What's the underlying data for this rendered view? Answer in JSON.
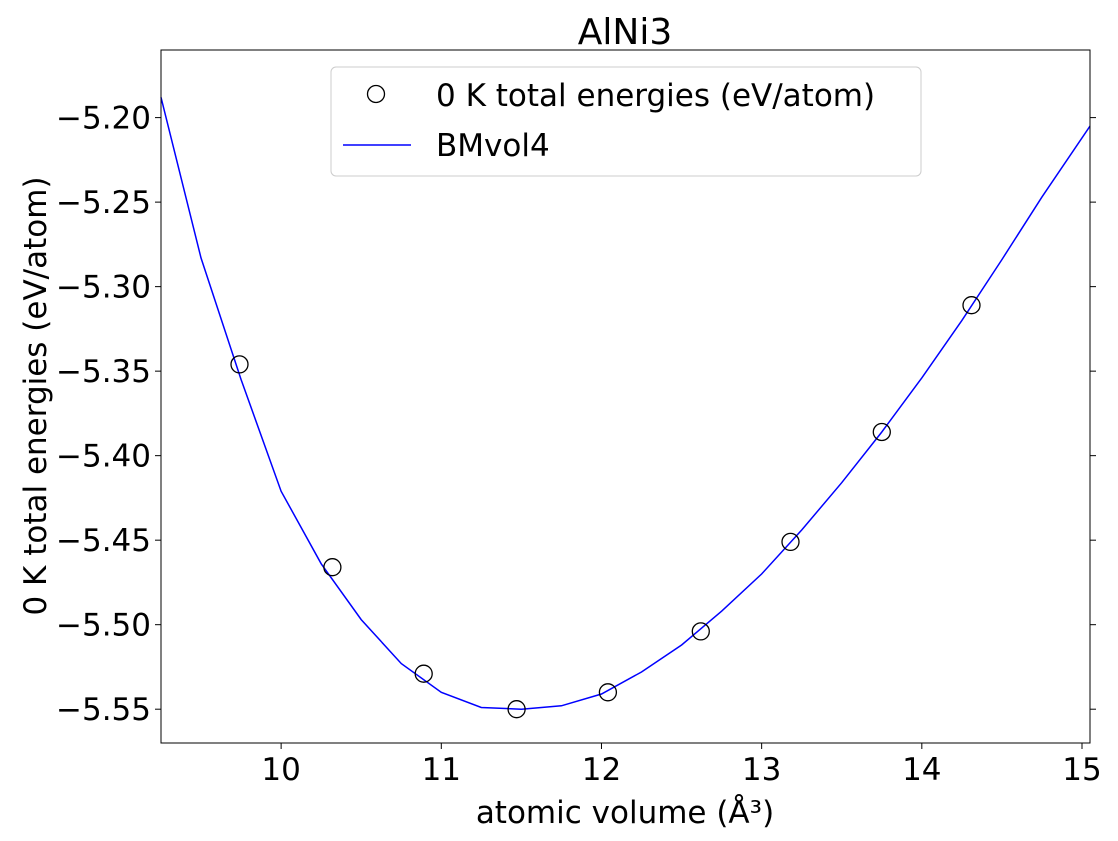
{
  "chart_data": {
    "type": "scatter",
    "title": "AlNi3",
    "xlabel": "atomic volume (Å³)",
    "ylabel": "0 K total energies (eV/atom)",
    "xlim": [
      9.25,
      15.05
    ],
    "ylim": [
      -5.57,
      -5.16
    ],
    "x_ticks": [
      10,
      11,
      12,
      13,
      14,
      15
    ],
    "x_tick_labels": [
      "10",
      "11",
      "12",
      "13",
      "14",
      "15"
    ],
    "y_ticks": [
      -5.2,
      -5.25,
      -5.3,
      -5.35,
      -5.4,
      -5.45,
      -5.5,
      -5.55
    ],
    "y_tick_labels": [
      "−5.20",
      "−5.25",
      "−5.30",
      "−5.35",
      "−5.40",
      "−5.45",
      "−5.50",
      "−5.55"
    ],
    "grid": false,
    "legend_position": "top-center",
    "series": [
      {
        "name": "0 K total energies (eV/atom)",
        "kind": "scatter",
        "marker": "open-circle",
        "color": "#000000",
        "x": [
          9.74,
          10.32,
          10.89,
          11.47,
          12.04,
          12.62,
          13.18,
          13.75,
          14.31
        ],
        "y": [
          -5.346,
          -5.466,
          -5.529,
          -5.55,
          -5.54,
          -5.504,
          -5.451,
          -5.386,
          -5.311
        ]
      },
      {
        "name": "BMvol4",
        "kind": "line",
        "color": "#0000ff",
        "x": [
          9.25,
          9.5,
          9.75,
          10.0,
          10.25,
          10.5,
          10.75,
          11.0,
          11.25,
          11.5,
          11.75,
          12.0,
          12.25,
          12.5,
          12.75,
          13.0,
          13.25,
          13.5,
          13.75,
          14.0,
          14.25,
          14.5,
          14.75,
          15.05
        ],
        "y": [
          -5.188,
          -5.283,
          -5.355,
          -5.421,
          -5.464,
          -5.497,
          -5.523,
          -5.54,
          -5.549,
          -5.55,
          -5.548,
          -5.541,
          -5.528,
          -5.512,
          -5.492,
          -5.47,
          -5.444,
          -5.416,
          -5.386,
          -5.354,
          -5.32,
          -5.284,
          -5.247,
          -5.205
        ]
      }
    ]
  }
}
